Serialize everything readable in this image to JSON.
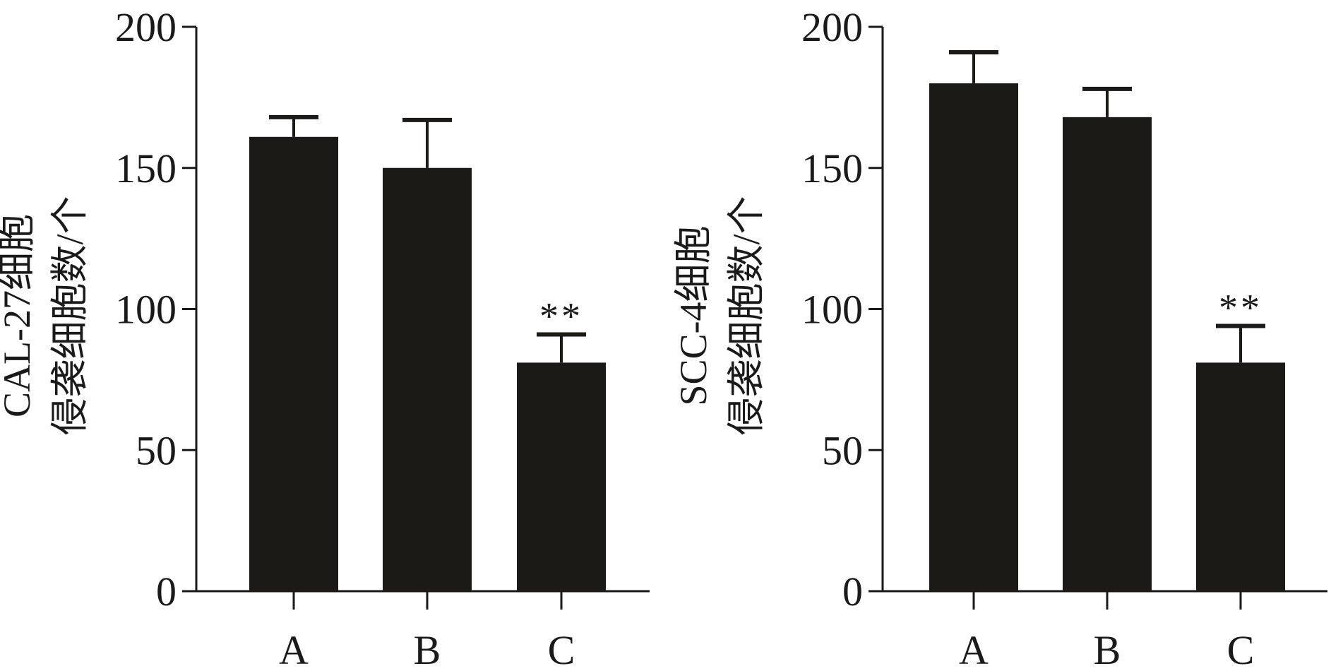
{
  "colors": {
    "bar": "#1c1a17",
    "axis": "#1a1a1a",
    "background": "#ffffff"
  },
  "chart_data": [
    {
      "type": "bar",
      "categories": [
        "A",
        "B",
        "C"
      ],
      "values": [
        161,
        150,
        81
      ],
      "errors": [
        7,
        17,
        10
      ],
      "annotations": [
        "",
        "",
        "**"
      ],
      "ylabel_lines": [
        "CAL-27细胞",
        "侵袭细胞数/个"
      ],
      "ylim": [
        0,
        200
      ],
      "yticks": [
        0,
        50,
        100,
        150,
        200
      ],
      "grid": false
    },
    {
      "type": "bar",
      "categories": [
        "A",
        "B",
        "C"
      ],
      "values": [
        180,
        168,
        81
      ],
      "errors": [
        11,
        10,
        13
      ],
      "annotations": [
        "",
        "",
        "**"
      ],
      "ylabel_lines": [
        "SCC-4细胞",
        "侵袭细胞数/个"
      ],
      "ylim": [
        0,
        200
      ],
      "yticks": [
        0,
        50,
        100,
        150,
        200
      ],
      "grid": false
    }
  ]
}
